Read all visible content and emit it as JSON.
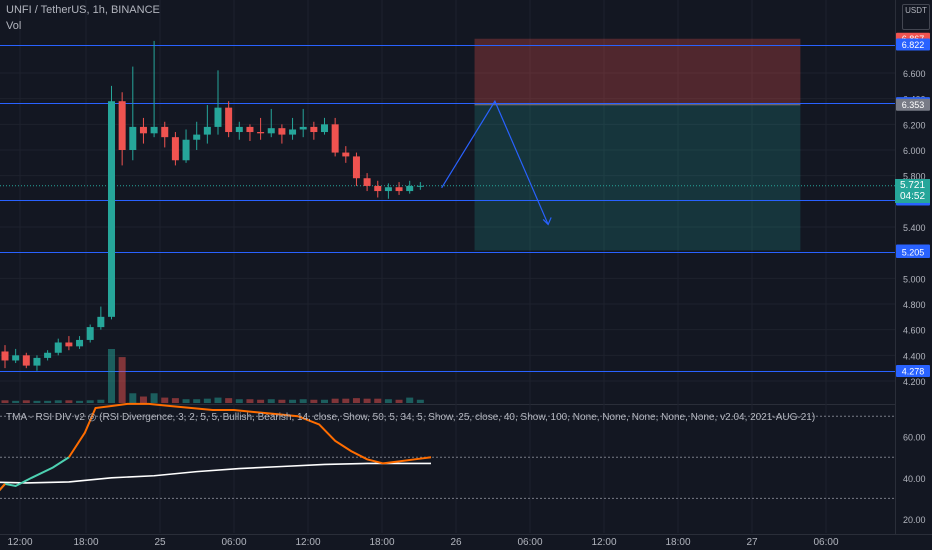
{
  "header": {
    "title": "UNFI / TetherUS, 1h, BINANCE",
    "vol_label": "Vol",
    "currency": "USDT",
    "indicator": "TMA - RSI DIV v2 ◎ (RSI Divergence, 3, 2, 5, 5, Bullish, Bearish, 14, close, Show, 50, 5, 34, 5, Show, 25, close, 40, Show, 100, None, None, None, None, None, v2.04, 2021-AUG-21)"
  },
  "colors": {
    "background": "#131722",
    "up": "#26a69a",
    "down": "#ef5350",
    "level_line": "#2962ff",
    "axis_text": "#b2b5be",
    "rsi_fast": "#ff6d00",
    "rsi_fast_up": "#4dd0b1",
    "rsi_slow": "#ffffff"
  },
  "price_axis": {
    "ticks": [
      "6.600",
      "6.400",
      "6.200",
      "6.000",
      "5.800",
      "5.400",
      "5.000",
      "4.800",
      "4.600",
      "4.400",
      "4.200"
    ]
  },
  "price_tags": [
    {
      "label": "6.867",
      "value": 6.867,
      "bg": "#ef5350"
    },
    {
      "label": "6.822",
      "value": 6.822,
      "bg": "#2962ff"
    },
    {
      "label": "6.365",
      "value": 6.365,
      "bg": "#2962ff"
    },
    {
      "label": "6.353",
      "value": 6.353,
      "bg": "#787b86"
    },
    {
      "label": "5.614",
      "value": 5.614,
      "bg": "#2962ff"
    },
    {
      "label": "5.217",
      "value": 5.217,
      "bg": "#2962ff"
    },
    {
      "label": "5.205",
      "value": 5.205,
      "bg": "#2962ff"
    },
    {
      "label": "4.278",
      "value": 4.278,
      "bg": "#2962ff"
    }
  ],
  "current_price": {
    "label": "5.721",
    "countdown": "04:52",
    "value": 5.721
  },
  "rsi_axis": {
    "ticks": [
      "60.00",
      "40.00",
      "20.00"
    ]
  },
  "time_axis": {
    "ticks": [
      "12:00",
      "18:00",
      "25",
      "06:00",
      "12:00",
      "18:00",
      "26",
      "06:00",
      "12:00",
      "18:00",
      "27",
      "06:00"
    ]
  },
  "chart_data": {
    "type": "candlestick",
    "symbol": "UNFI / TetherUS",
    "interval": "1h",
    "exchange": "BINANCE",
    "price_range": [
      4.1,
      6.95
    ],
    "horizontal_levels": [
      6.822,
      6.365,
      5.614,
      5.205,
      4.278
    ],
    "position": {
      "entry": 6.353,
      "stop": 6.867,
      "target": 5.217,
      "side": "short",
      "start_bar": 47,
      "end_bar": 76
    },
    "projection_path": [
      [
        41,
        5.705
      ],
      [
        46,
        6.38
      ],
      [
        51,
        5.42
      ]
    ],
    "candles": [
      [
        4.43,
        4.36,
        4.48,
        4.3
      ],
      [
        4.36,
        4.4,
        4.45,
        4.34
      ],
      [
        4.4,
        4.32,
        4.42,
        4.3
      ],
      [
        4.32,
        4.38,
        4.4,
        4.28
      ],
      [
        4.38,
        4.42,
        4.44,
        4.36
      ],
      [
        4.42,
        4.5,
        4.53,
        4.4
      ],
      [
        4.5,
        4.47,
        4.55,
        4.44
      ],
      [
        4.47,
        4.52,
        4.55,
        4.45
      ],
      [
        4.52,
        4.62,
        4.64,
        4.5
      ],
      [
        4.62,
        4.7,
        4.78,
        4.6
      ],
      [
        4.7,
        6.38,
        6.5,
        4.68
      ],
      [
        6.38,
        6.0,
        6.45,
        5.88
      ],
      [
        6.0,
        6.18,
        6.65,
        5.92
      ],
      [
        6.18,
        6.13,
        6.25,
        6.05
      ],
      [
        6.13,
        6.18,
        6.85,
        6.1
      ],
      [
        6.18,
        6.1,
        6.22,
        6.02
      ],
      [
        6.1,
        5.92,
        6.14,
        5.88
      ],
      [
        5.92,
        6.08,
        6.16,
        5.9
      ],
      [
        6.08,
        6.12,
        6.22,
        6.0
      ],
      [
        6.12,
        6.18,
        6.35,
        6.05
      ],
      [
        6.18,
        6.33,
        6.62,
        6.12
      ],
      [
        6.33,
        6.14,
        6.38,
        6.1
      ],
      [
        6.14,
        6.18,
        6.22,
        6.08
      ],
      [
        6.18,
        6.14,
        6.2,
        6.07
      ],
      [
        6.14,
        6.13,
        6.25,
        6.08
      ],
      [
        6.13,
        6.17,
        6.32,
        6.1
      ],
      [
        6.17,
        6.12,
        6.2,
        6.05
      ],
      [
        6.12,
        6.16,
        6.25,
        6.08
      ],
      [
        6.16,
        6.18,
        6.32,
        6.1
      ],
      [
        6.18,
        6.14,
        6.22,
        6.08
      ],
      [
        6.14,
        6.2,
        6.25,
        6.12
      ],
      [
        6.2,
        5.98,
        6.25,
        5.95
      ],
      [
        5.98,
        5.95,
        6.03,
        5.9
      ],
      [
        5.95,
        5.78,
        5.98,
        5.72
      ],
      [
        5.78,
        5.72,
        5.82,
        5.68
      ],
      [
        5.72,
        5.68,
        5.76,
        5.63
      ],
      [
        5.68,
        5.71,
        5.74,
        5.62
      ],
      [
        5.71,
        5.68,
        5.75,
        5.65
      ],
      [
        5.68,
        5.72,
        5.76,
        5.66
      ],
      [
        5.72,
        5.721,
        5.75,
        5.69
      ]
    ],
    "volumes": [
      0.05,
      0.04,
      0.05,
      0.04,
      0.04,
      0.05,
      0.05,
      0.04,
      0.05,
      0.06,
      1.0,
      0.85,
      0.18,
      0.12,
      0.18,
      0.1,
      0.09,
      0.07,
      0.07,
      0.08,
      0.1,
      0.09,
      0.07,
      0.07,
      0.06,
      0.07,
      0.06,
      0.06,
      0.07,
      0.06,
      0.06,
      0.08,
      0.08,
      0.09,
      0.08,
      0.08,
      0.07,
      0.06,
      0.1,
      0.06
    ],
    "rsi": {
      "range": [
        17,
        74
      ],
      "levels": [
        70,
        50,
        30
      ],
      "fast": [
        [
          -6.5,
          24
        ],
        [
          -4.8,
          23
        ],
        [
          -3,
          23
        ],
        [
          -1.2,
          30
        ],
        [
          0,
          37
        ],
        [
          1,
          36
        ],
        [
          2.5,
          40
        ],
        [
          4.5,
          45
        ],
        [
          6,
          50
        ],
        [
          7.5,
          62
        ],
        [
          8.5,
          74
        ],
        [
          10,
          75
        ],
        [
          11.5,
          76
        ],
        [
          13.5,
          76
        ],
        [
          15.5,
          75
        ],
        [
          17.5,
          74
        ],
        [
          19.5,
          73
        ],
        [
          21.5,
          73
        ],
        [
          23.5,
          72
        ],
        [
          25.5,
          71
        ],
        [
          27.5,
          70
        ],
        [
          29.5,
          66
        ],
        [
          31,
          58
        ],
        [
          32.5,
          53
        ],
        [
          34,
          49
        ],
        [
          35.5,
          47
        ],
        [
          37,
          48
        ],
        [
          38.5,
          49
        ],
        [
          40,
          50
        ]
      ],
      "slow": [
        [
          -6.5,
          39
        ],
        [
          -2,
          38
        ],
        [
          2,
          37.5
        ],
        [
          6,
          38
        ],
        [
          10,
          40
        ],
        [
          14,
          41
        ],
        [
          18,
          43
        ],
        [
          22,
          44.5
        ],
        [
          26,
          45.5
        ],
        [
          30,
          46.5
        ],
        [
          34,
          47
        ],
        [
          38,
          47
        ],
        [
          40,
          47
        ]
      ],
      "marker": [
        -0.8,
        29
      ]
    }
  }
}
